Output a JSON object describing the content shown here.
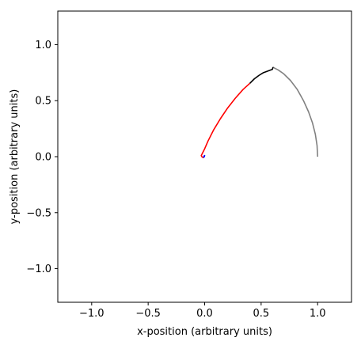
{
  "chart_data": {
    "type": "line",
    "title": "",
    "xlabel": "x-position (arbitrary units)",
    "ylabel": "y-position (arbitrary units)",
    "xlim": [
      -1.3,
      1.3
    ],
    "ylim": [
      -1.3,
      1.3
    ],
    "xticks": [
      -1.0,
      -0.5,
      0.0,
      0.5,
      1.0
    ],
    "yticks": [
      -1.0,
      -0.5,
      0.0,
      0.5,
      1.0
    ],
    "xtick_labels": [
      "−1.0",
      "−0.5",
      "0.0",
      "0.5",
      "1.0"
    ],
    "ytick_labels": [
      "−1.0",
      "−0.5",
      "0.0",
      "0.5",
      "1.0"
    ],
    "grid": false,
    "series": [
      {
        "color": "#808080",
        "x": [
          1.0,
          0.995,
          0.98,
          0.955,
          0.92,
          0.875,
          0.82,
          0.76,
          0.7,
          0.65,
          0.62,
          0.605
        ],
        "y": [
          0.0,
          0.1,
          0.2,
          0.3,
          0.4,
          0.5,
          0.6,
          0.68,
          0.74,
          0.775,
          0.79,
          0.8
        ]
      },
      {
        "color": "#000000",
        "x": [
          0.605,
          0.6,
          0.56,
          0.52,
          0.48,
          0.44,
          0.4
        ],
        "y": [
          0.8,
          0.78,
          0.765,
          0.75,
          0.725,
          0.695,
          0.655
        ]
      },
      {
        "color": "#ff0000",
        "x": [
          0.4,
          0.34,
          0.27,
          0.2,
          0.14,
          0.08,
          0.03,
          0.0,
          -0.02,
          -0.03,
          -0.025,
          -0.01
        ],
        "y": [
          0.655,
          0.6,
          0.52,
          0.43,
          0.34,
          0.24,
          0.14,
          0.07,
          0.03,
          0.01,
          0.0,
          -0.01
        ]
      },
      {
        "color": "#0000ff",
        "x": [
          -0.01,
          -0.005,
          0.0,
          -0.005
        ],
        "y": [
          -0.01,
          0.005,
          0.01,
          -0.005
        ]
      }
    ]
  }
}
